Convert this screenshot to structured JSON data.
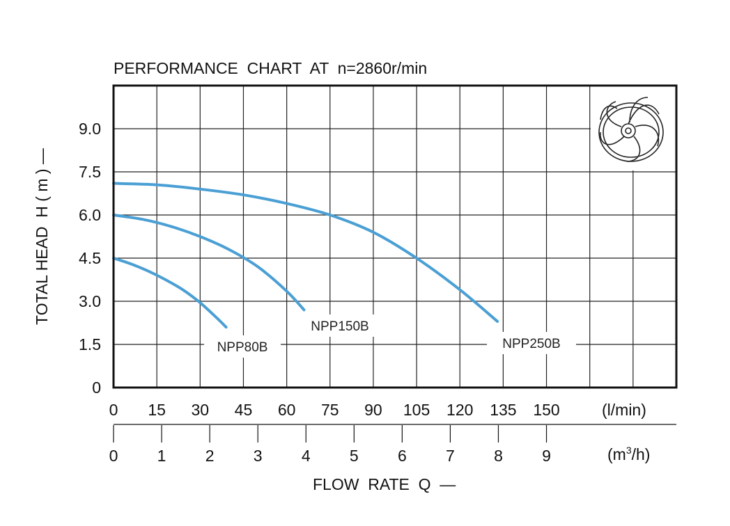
{
  "colors": {
    "curve": "#4a9fd4",
    "grid": "#222222",
    "frame": "#111111",
    "background": "#ffffff"
  },
  "icon": "impeller-icon",
  "chart_data": {
    "type": "line",
    "title": "PERFORMANCE  CHART  AT  n=2860r/min",
    "xlabel": "FLOW  RATE  Q  —",
    "ylabel": "TOTAL HEAD  H ( m ) —",
    "x_unit_primary": "(l/min)",
    "x_unit_secondary_prefix": "(m",
    "x_unit_secondary_sup": "3",
    "x_unit_secondary_suffix": "/h)",
    "xlim": [
      0,
      195
    ],
    "ylim": [
      0,
      10.5
    ],
    "x_ticks": [
      "0",
      "15",
      "30",
      "45",
      "60",
      "75",
      "90",
      "105",
      "120",
      "135",
      "150"
    ],
    "x_ticks_secondary": [
      "0",
      "1",
      "2",
      "3",
      "4",
      "5",
      "6",
      "7",
      "8",
      "9"
    ],
    "y_ticks": [
      "0",
      "1.5",
      "3.0",
      "4.5",
      "6.0",
      "7.5",
      "9.0"
    ],
    "grid": true,
    "series": [
      {
        "name": "NPP80B",
        "x": [
          0,
          6,
          12,
          18,
          24,
          30,
          36,
          39
        ],
        "y": [
          4.5,
          4.3,
          4.05,
          3.75,
          3.4,
          2.95,
          2.4,
          2.1
        ]
      },
      {
        "name": "NPP150B",
        "x": [
          0,
          10,
          20,
          30,
          40,
          50,
          60,
          66
        ],
        "y": [
          6.0,
          5.85,
          5.6,
          5.25,
          4.8,
          4.2,
          3.35,
          2.7
        ]
      },
      {
        "name": "NPP250B",
        "x": [
          0,
          15,
          30,
          45,
          60,
          75,
          90,
          105,
          120,
          133
        ],
        "y": [
          7.1,
          7.05,
          6.9,
          6.7,
          6.4,
          6.0,
          5.4,
          4.5,
          3.4,
          2.3
        ]
      }
    ]
  }
}
